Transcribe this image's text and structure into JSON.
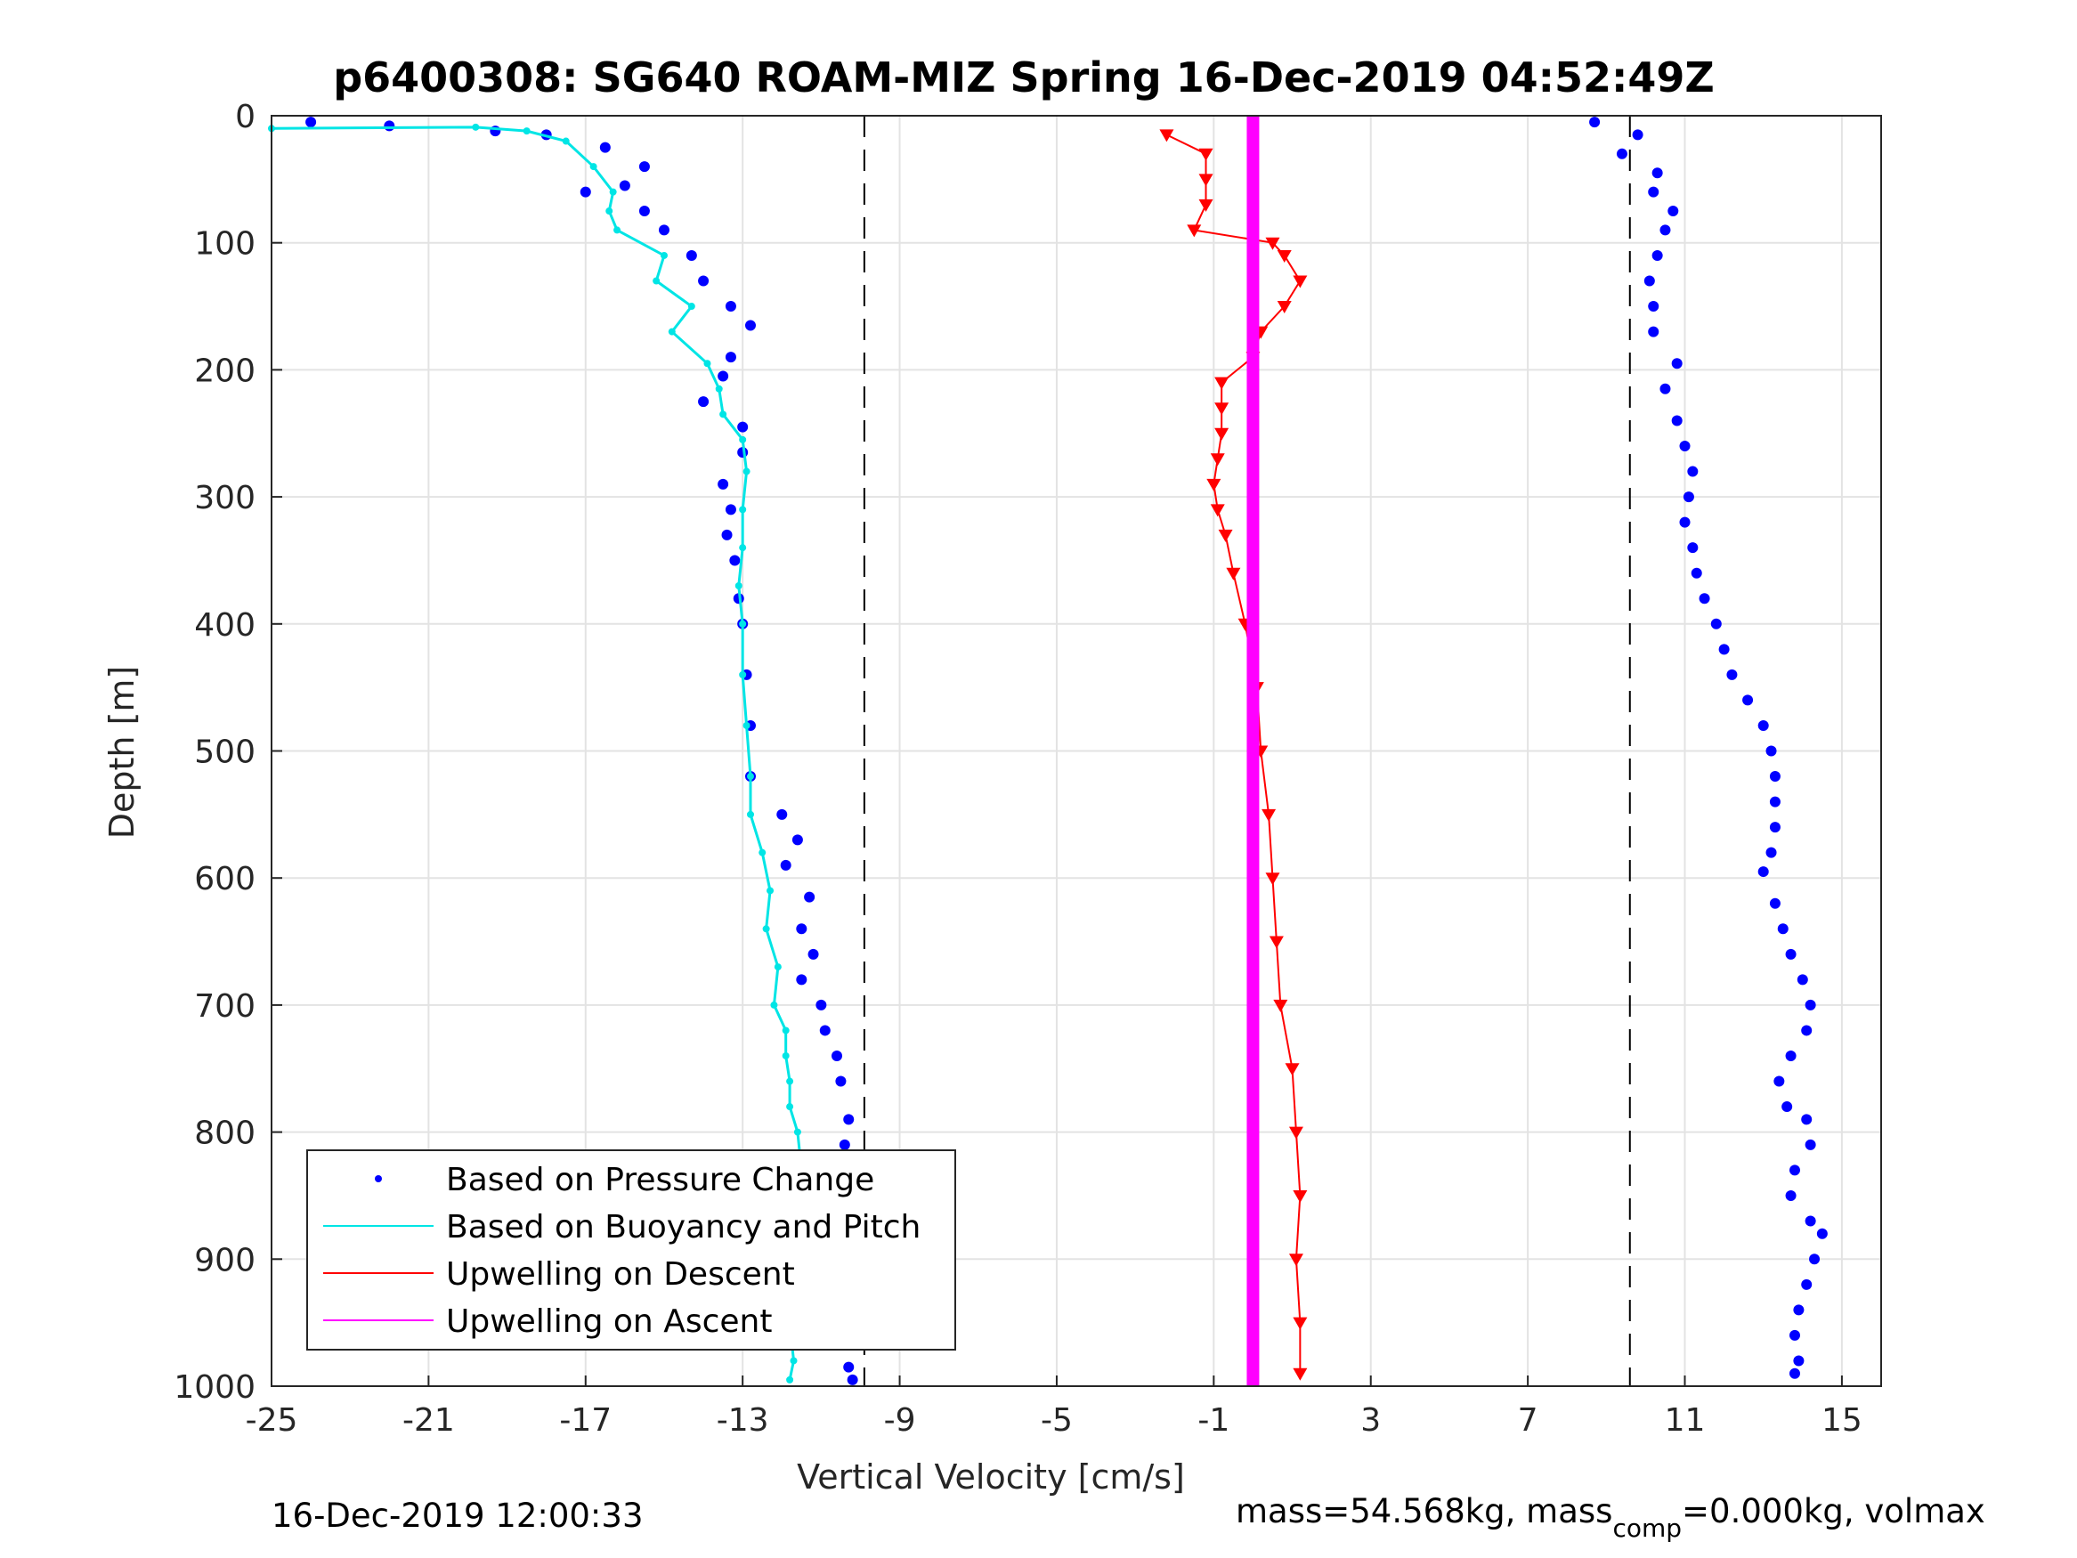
{
  "chart_data": {
    "type": "scatter",
    "title": "p6400308: SG640 ROAM-MIZ Spring 16-Dec-2019 04:52:49Z",
    "xlabel": "Vertical Velocity [cm/s]",
    "ylabel": "Depth [m]",
    "xlim": [
      -25,
      16
    ],
    "ylim": [
      0,
      1000
    ],
    "y_reversed": true,
    "grid": true,
    "x_ticks": [
      -25,
      -21,
      -17,
      -13,
      -9,
      -5,
      -1,
      3,
      7,
      11,
      15
    ],
    "y_ticks": [
      0,
      100,
      200,
      300,
      400,
      500,
      600,
      700,
      800,
      900,
      1000
    ],
    "reference_lines": [
      -9.9,
      9.6
    ],
    "legend_position": "bottom-left",
    "legend": [
      {
        "label": "Based on Pressure Change",
        "color": "#0000ff",
        "marker": "dot"
      },
      {
        "label": "Based on Buoyancy and Pitch",
        "color": "#00e5e5",
        "marker": "line"
      },
      {
        "label": "Upwelling on Descent",
        "color": "#ff0000",
        "marker": "line"
      },
      {
        "label": "Upwelling on Ascent",
        "color": "#ff00ff",
        "marker": "line"
      }
    ],
    "series": [
      {
        "name": "Based on Pressure Change",
        "color": "#0000ff",
        "note": "descent branch (negative velocity)",
        "points": [
          [
            -24,
            5
          ],
          [
            -22,
            8
          ],
          [
            -19.3,
            12
          ],
          [
            -18,
            15
          ],
          [
            -16.5,
            25
          ],
          [
            -15.5,
            40
          ],
          [
            -16,
            55
          ],
          [
            -17,
            60
          ],
          [
            -15.5,
            75
          ],
          [
            -15,
            90
          ],
          [
            -14.3,
            110
          ],
          [
            -14,
            130
          ],
          [
            -13.3,
            150
          ],
          [
            -12.8,
            165
          ],
          [
            -13.3,
            190
          ],
          [
            -13.5,
            205
          ],
          [
            -14,
            225
          ],
          [
            -13,
            245
          ],
          [
            -13,
            265
          ],
          [
            -13.5,
            290
          ],
          [
            -13.3,
            310
          ],
          [
            -13.4,
            330
          ],
          [
            -13.2,
            350
          ],
          [
            -13.1,
            380
          ],
          [
            -13,
            400
          ],
          [
            -12.9,
            440
          ],
          [
            -12.8,
            480
          ],
          [
            -12.8,
            520
          ],
          [
            -12,
            550
          ],
          [
            -11.6,
            570
          ],
          [
            -11.9,
            590
          ],
          [
            -11.3,
            615
          ],
          [
            -11.5,
            640
          ],
          [
            -11.2,
            660
          ],
          [
            -11.5,
            680
          ],
          [
            -11,
            700
          ],
          [
            -10.9,
            720
          ],
          [
            -10.6,
            740
          ],
          [
            -10.5,
            760
          ],
          [
            -10.3,
            790
          ],
          [
            -10.4,
            810
          ],
          [
            -10.5,
            840
          ],
          [
            -10.5,
            870
          ],
          [
            -10.5,
            900
          ],
          [
            -10.6,
            930
          ],
          [
            -10.5,
            960
          ],
          [
            -10.3,
            985
          ],
          [
            -10.2,
            995
          ]
        ]
      },
      {
        "name": "Based on Pressure Change",
        "color": "#0000ff",
        "note": "ascent branch (positive velocity)",
        "points": [
          [
            8.7,
            5
          ],
          [
            9.8,
            15
          ],
          [
            9.4,
            30
          ],
          [
            10.3,
            45
          ],
          [
            10.2,
            60
          ],
          [
            10.7,
            75
          ],
          [
            10.5,
            90
          ],
          [
            10.3,
            110
          ],
          [
            10.1,
            130
          ],
          [
            10.2,
            150
          ],
          [
            10.2,
            170
          ],
          [
            10.8,
            195
          ],
          [
            10.5,
            215
          ],
          [
            10.8,
            240
          ],
          [
            11,
            260
          ],
          [
            11.2,
            280
          ],
          [
            11.1,
            300
          ],
          [
            11,
            320
          ],
          [
            11.2,
            340
          ],
          [
            11.3,
            360
          ],
          [
            11.5,
            380
          ],
          [
            11.8,
            400
          ],
          [
            12,
            420
          ],
          [
            12.2,
            440
          ],
          [
            12.6,
            460
          ],
          [
            13,
            480
          ],
          [
            13.2,
            500
          ],
          [
            13.3,
            520
          ],
          [
            13.3,
            540
          ],
          [
            13.3,
            560
          ],
          [
            13.2,
            580
          ],
          [
            13,
            595
          ],
          [
            13.3,
            620
          ],
          [
            13.5,
            640
          ],
          [
            13.7,
            660
          ],
          [
            14,
            680
          ],
          [
            14.2,
            700
          ],
          [
            14.1,
            720
          ],
          [
            13.7,
            740
          ],
          [
            13.4,
            760
          ],
          [
            13.6,
            780
          ],
          [
            14.1,
            790
          ],
          [
            14.2,
            810
          ],
          [
            13.8,
            830
          ],
          [
            13.7,
            850
          ],
          [
            14.2,
            870
          ],
          [
            14.5,
            880
          ],
          [
            14.3,
            900
          ],
          [
            14.1,
            920
          ],
          [
            13.9,
            940
          ],
          [
            13.8,
            960
          ],
          [
            13.9,
            980
          ],
          [
            13.8,
            990
          ]
        ]
      },
      {
        "name": "Based on Buoyancy and Pitch",
        "color": "#00e5e5",
        "points": [
          [
            -25,
            10
          ],
          [
            -19.8,
            9
          ],
          [
            -18.5,
            12
          ],
          [
            -17.5,
            20
          ],
          [
            -16.8,
            40
          ],
          [
            -16.3,
            60
          ],
          [
            -16.4,
            75
          ],
          [
            -16.2,
            90
          ],
          [
            -15,
            110
          ],
          [
            -15.2,
            130
          ],
          [
            -14.3,
            150
          ],
          [
            -14.8,
            170
          ],
          [
            -13.9,
            195
          ],
          [
            -13.6,
            215
          ],
          [
            -13.5,
            235
          ],
          [
            -13,
            255
          ],
          [
            -12.9,
            280
          ],
          [
            -13,
            310
          ],
          [
            -13,
            340
          ],
          [
            -13.1,
            370
          ],
          [
            -13,
            400
          ],
          [
            -13,
            440
          ],
          [
            -12.9,
            480
          ],
          [
            -12.8,
            520
          ],
          [
            -12.8,
            550
          ],
          [
            -12.5,
            580
          ],
          [
            -12.3,
            610
          ],
          [
            -12.4,
            640
          ],
          [
            -12.1,
            670
          ],
          [
            -12.2,
            700
          ],
          [
            -11.9,
            720
          ],
          [
            -11.9,
            740
          ],
          [
            -11.8,
            760
          ],
          [
            -11.8,
            780
          ],
          [
            -11.6,
            800
          ],
          [
            -11.5,
            830
          ],
          [
            -11.5,
            860
          ],
          [
            -11.7,
            890
          ],
          [
            -11.8,
            920
          ],
          [
            -11.8,
            950
          ],
          [
            -11.7,
            980
          ],
          [
            -11.8,
            995
          ]
        ]
      },
      {
        "name": "Upwelling on Descent",
        "color": "#ff0000",
        "points": [
          [
            -2.2,
            15
          ],
          [
            -1.2,
            30
          ],
          [
            -1.2,
            50
          ],
          [
            -1.2,
            70
          ],
          [
            -1.5,
            90
          ],
          [
            0.5,
            100
          ],
          [
            0.8,
            110
          ],
          [
            1.2,
            130
          ],
          [
            0.8,
            150
          ],
          [
            0.2,
            170
          ],
          [
            0,
            190
          ],
          [
            -0.8,
            210
          ],
          [
            -0.8,
            230
          ],
          [
            -0.8,
            250
          ],
          [
            -0.9,
            270
          ],
          [
            -1,
            290
          ],
          [
            -0.9,
            310
          ],
          [
            -0.7,
            330
          ],
          [
            -0.5,
            360
          ],
          [
            -0.2,
            400
          ],
          [
            0.1,
            450
          ],
          [
            0.2,
            500
          ],
          [
            0.4,
            550
          ],
          [
            0.5,
            600
          ],
          [
            0.6,
            650
          ],
          [
            0.7,
            700
          ],
          [
            1,
            750
          ],
          [
            1.1,
            800
          ],
          [
            1.2,
            850
          ],
          [
            1.1,
            900
          ],
          [
            1.2,
            950
          ],
          [
            1.2,
            990
          ]
        ]
      },
      {
        "name": "Upwelling on Ascent",
        "color": "#ff00ff",
        "points": [
          [
            0,
            0
          ],
          [
            0,
            1000
          ]
        ]
      }
    ]
  },
  "footer": {
    "timestamp": "16-Dec-2019 12:00:33",
    "mass_text_a": "mass=54.568kg, mass",
    "mass_sub": "comp",
    "mass_text_b": "=0.000kg, volmax"
  }
}
